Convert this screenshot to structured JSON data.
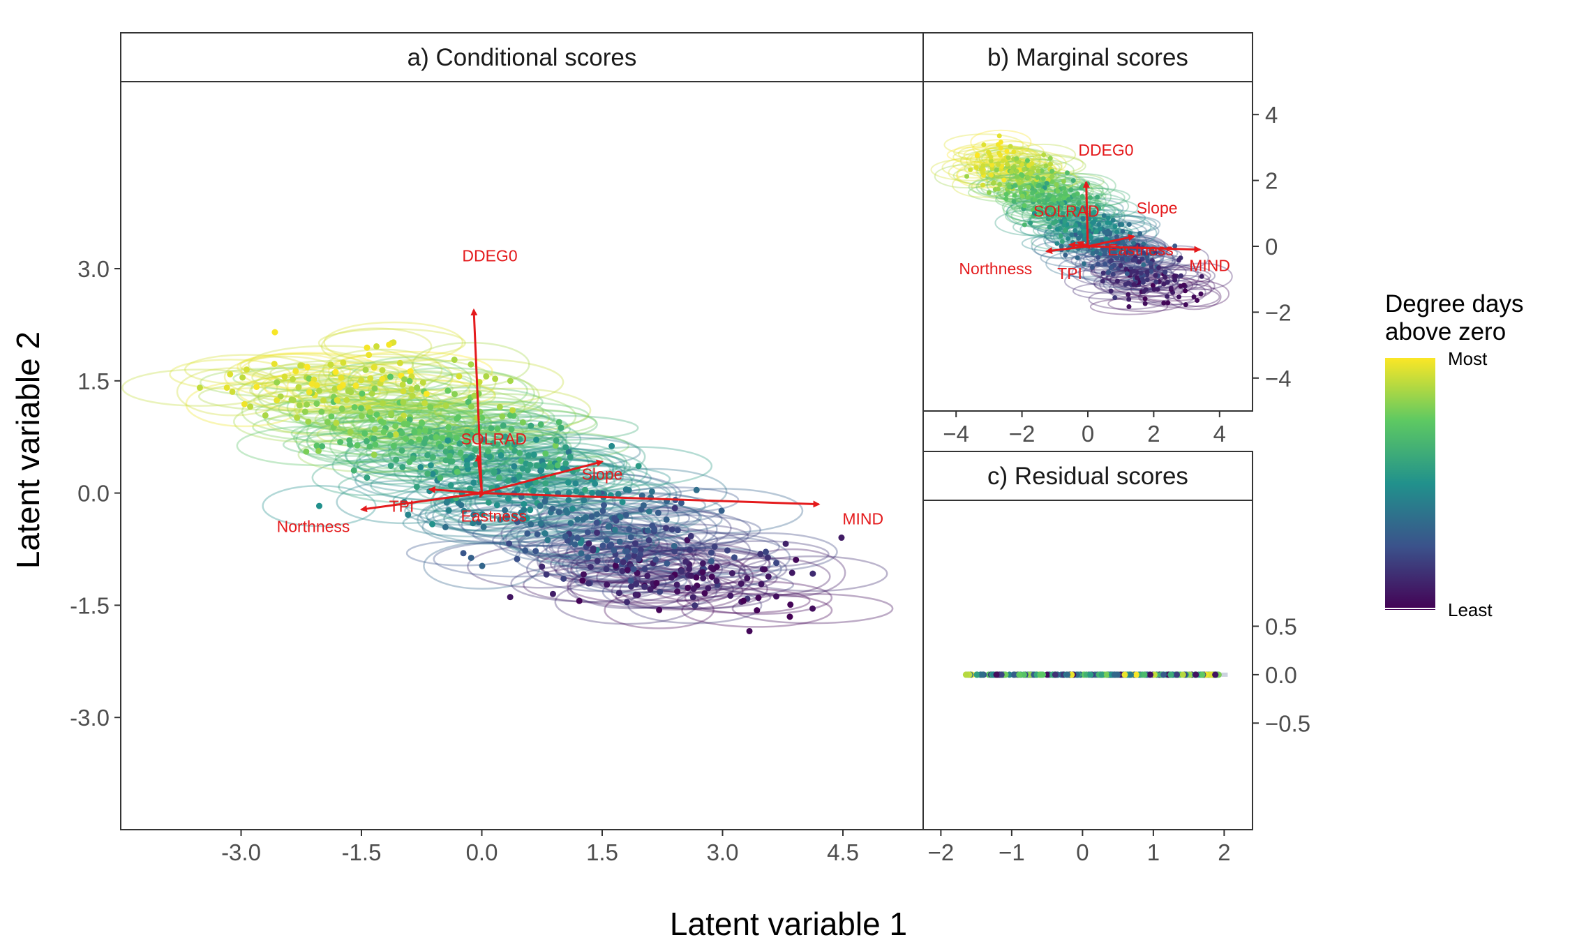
{
  "chart_data": [
    {
      "type": "scatter",
      "title": "a) Conditional scores",
      "xlabel": "Latent variable 1",
      "ylabel": "Latent variable 2",
      "xlim": [
        -4.5,
        5.5
      ],
      "ylim": [
        -4.5,
        5.5
      ],
      "xticks": [
        "-3.0",
        "-1.5",
        "0.0",
        "1.5",
        "3.0",
        "4.5"
      ],
      "yticks": [
        "-3.0",
        "-1.5",
        "0.0",
        "1.5",
        "3.0"
      ],
      "arrows": [
        {
          "label": "DDEG0",
          "x": -0.1,
          "y": 2.45,
          "lx": 0.1,
          "ly": 3.1
        },
        {
          "label": "SOLRAD",
          "x": -0.05,
          "y": 0.5,
          "lx": 0.15,
          "ly": 0.65
        },
        {
          "label": "Slope",
          "x": 1.5,
          "y": 0.42,
          "lx": 1.5,
          "ly": 0.18
        },
        {
          "label": "MIND",
          "x": 4.2,
          "y": -0.15,
          "lx": 4.75,
          "ly": -0.42
        },
        {
          "label": "Northness",
          "x": -1.5,
          "y": -0.22,
          "lx": -2.1,
          "ly": -0.52
        },
        {
          "label": "TPI",
          "x": -0.65,
          "y": 0.05,
          "lx": -1.0,
          "ly": -0.25
        },
        {
          "label": "Eastness",
          "x": -0.02,
          "y": -0.05,
          "lx": 0.15,
          "ly": -0.38
        }
      ]
    },
    {
      "type": "scatter",
      "title": "b) Marginal scores",
      "xlim": [
        -5.0,
        5.0
      ],
      "ylim": [
        -5.0,
        5.0
      ],
      "xticks": [
        "−4",
        "−2",
        "0",
        "2",
        "4"
      ],
      "yticks": [
        "4",
        "2",
        "0",
        "−2",
        "−4"
      ],
      "arrows": [
        {
          "label": "DDEG0",
          "x": -0.05,
          "y": 1.95,
          "lx": 0.55,
          "ly": 2.75
        },
        {
          "label": "SOLRAD",
          "x": -0.3,
          "y": 0.12,
          "lx": -0.65,
          "ly": 0.9
        },
        {
          "label": "Slope",
          "x": 1.4,
          "y": 0.3,
          "lx": 2.1,
          "ly": 1.0
        },
        {
          "label": "MIND",
          "x": 3.4,
          "y": -0.1,
          "lx": 3.7,
          "ly": -0.75
        },
        {
          "label": "Northness",
          "x": -1.25,
          "y": -0.15,
          "lx": -2.8,
          "ly": -0.85
        },
        {
          "label": "TPI",
          "x": -0.55,
          "y": 0.05,
          "lx": -0.55,
          "ly": -1.0
        },
        {
          "label": "Eastness",
          "x": 0.05,
          "y": -0.05,
          "lx": 1.6,
          "ly": -0.28
        }
      ]
    },
    {
      "type": "scatter",
      "title": "c) Residual scores",
      "xlim": [
        -2.25,
        2.4
      ],
      "ylim": [
        -1.6,
        1.8
      ],
      "xticks": [
        "−2",
        "−1",
        "0",
        "1",
        "2"
      ],
      "yticks": [
        "0.5",
        "0.0",
        "−0.5"
      ],
      "residual_range": [
        -1.65,
        1.95
      ]
    }
  ],
  "legend": {
    "title_line1": "Degree days",
    "title_line2": "above zero",
    "high_label": "Most",
    "low_label": "Least",
    "colors": [
      "#fde725",
      "#5ec962",
      "#21918c",
      "#3b528b",
      "#440154"
    ]
  },
  "colors": {
    "arrow": "#e41a1c",
    "axis": "#333333"
  }
}
